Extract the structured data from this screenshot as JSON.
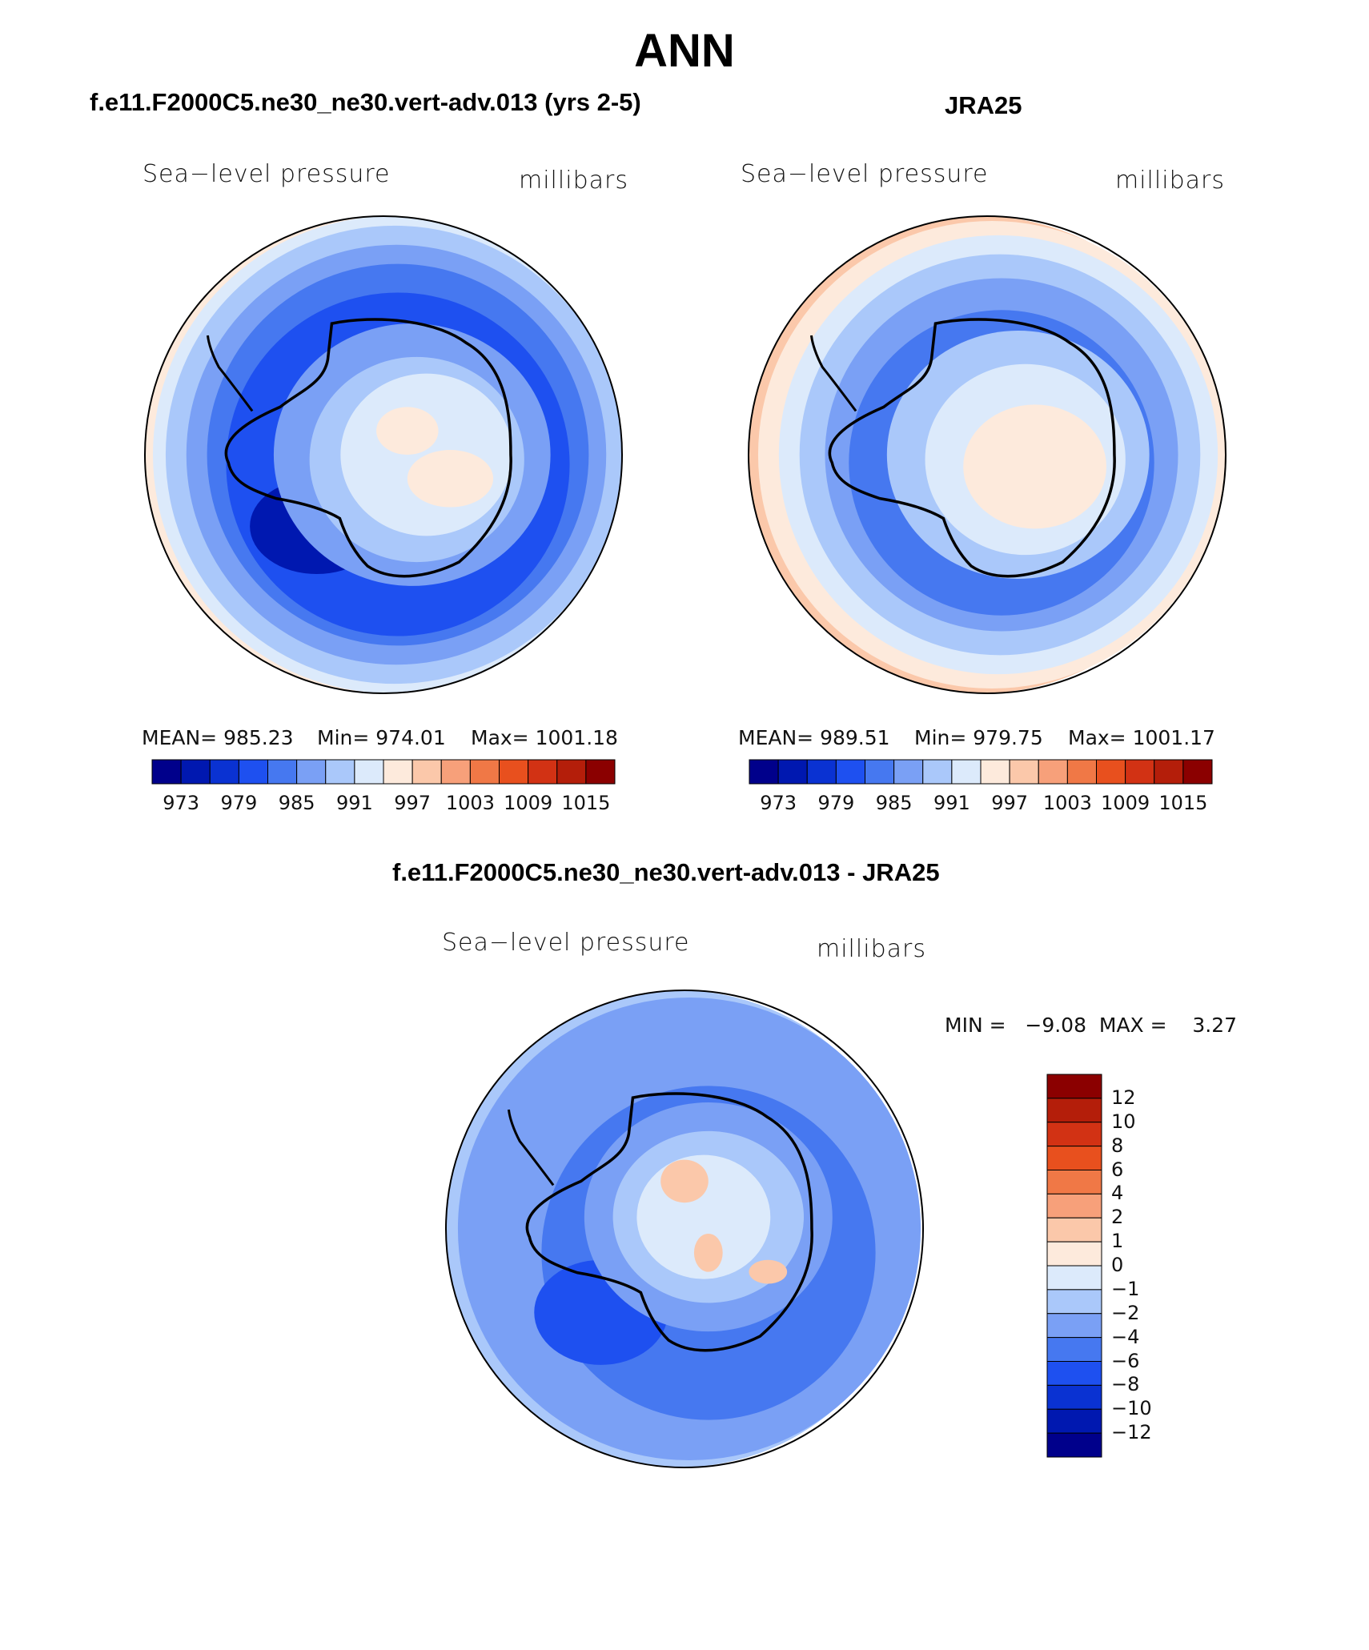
{
  "main_title": "ANN",
  "panels": [
    {
      "case_title": "f.e11.F2000C5.ne30_ne30.vert-adv.013 (yrs 2-5)",
      "left_label": "Sea−level pressure",
      "right_label": "millibars",
      "stats": {
        "mean": "MEAN= 985.23",
        "min": "Min= 974.01",
        "max": "Max= 1001.18"
      }
    },
    {
      "case_title": "JRA25",
      "left_label": "Sea−level pressure",
      "right_label": "millibars",
      "stats": {
        "mean": "MEAN= 989.51",
        "min": "Min= 979.75",
        "max": "Max= 1001.17"
      }
    },
    {
      "case_title": "f.e11.F2000C5.ne30_ne30.vert-adv.013 - JRA25",
      "left_label": "Sea−level pressure",
      "right_label": "millibars",
      "minmax": "MIN =   −9.08  MAX =    3.27"
    }
  ],
  "abs_colorbar": {
    "colors": [
      "#00008b",
      "#0018b0",
      "#0a32d2",
      "#1e50f0",
      "#4678f0",
      "#7aa0f5",
      "#aac8fa",
      "#dceafb",
      "#fdeadc",
      "#fbc8aa",
      "#f7a07a",
      "#f07846",
      "#e8501e",
      "#d23214",
      "#b41e0a",
      "#8b0000"
    ],
    "ticks": [
      "973",
      "979",
      "985",
      "991",
      "997",
      "1003",
      "1009",
      "1015"
    ]
  },
  "diff_colorbar": {
    "colors": [
      "#8b0000",
      "#b41e0a",
      "#d23214",
      "#e8501e",
      "#f07846",
      "#f7a07a",
      "#fbc8aa",
      "#fdeadc",
      "#dceafb",
      "#aac8fa",
      "#7aa0f5",
      "#4678f0",
      "#1e50f0",
      "#0a32d2",
      "#0018b0",
      "#00008b"
    ],
    "ticks": [
      "12",
      "10",
      "8",
      "6",
      "4",
      "2",
      "1",
      "0",
      "−1",
      "−2",
      "−4",
      "−6",
      "−8",
      "−10",
      "−12"
    ]
  },
  "chart_data": [
    {
      "type": "heatmap",
      "title": "f.e11.F2000C5.ne30_ne30.vert-adv.013 (yrs 2-5)",
      "variable": "Sea-level pressure",
      "units": "millibars",
      "projection": "south polar stereographic",
      "mean": 985.23,
      "min": 974.01,
      "max": 1001.18,
      "levels": [
        973,
        976,
        979,
        982,
        985,
        988,
        991,
        994,
        997,
        1000,
        1003,
        1006,
        1009,
        1012,
        1015
      ]
    },
    {
      "type": "heatmap",
      "title": "JRA25",
      "variable": "Sea-level pressure",
      "units": "millibars",
      "projection": "south polar stereographic",
      "mean": 989.51,
      "min": 979.75,
      "max": 1001.17,
      "levels": [
        973,
        976,
        979,
        982,
        985,
        988,
        991,
        994,
        997,
        1000,
        1003,
        1006,
        1009,
        1012,
        1015
      ]
    },
    {
      "type": "heatmap",
      "title": "f.e11.F2000C5.ne30_ne30.vert-adv.013 - JRA25",
      "variable": "Sea-level pressure",
      "units": "millibars",
      "projection": "south polar stereographic",
      "min": -9.08,
      "max": 3.27,
      "levels": [
        -12,
        -10,
        -8,
        -6,
        -4,
        -2,
        -1,
        0,
        1,
        2,
        4,
        6,
        8,
        10,
        12
      ]
    }
  ]
}
